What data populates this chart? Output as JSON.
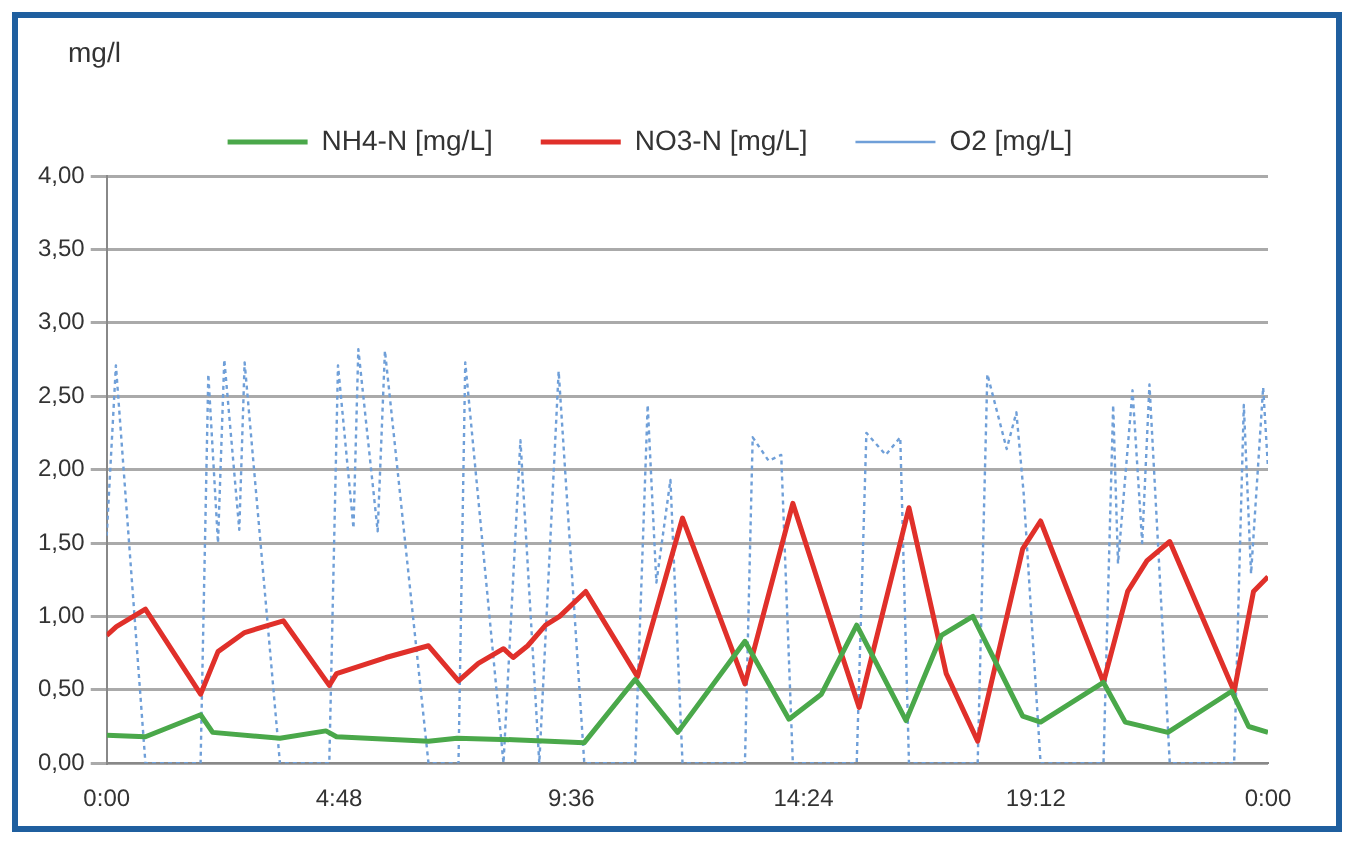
{
  "chart_data": {
    "type": "line",
    "ylabel": "mg/l",
    "xlim": [
      0,
      24
    ],
    "xticks": [
      {
        "value": 0,
        "label": "0:00"
      },
      {
        "value": 4.8,
        "label": "4:48"
      },
      {
        "value": 9.6,
        "label": "9:36"
      },
      {
        "value": 14.4,
        "label": "14:24"
      },
      {
        "value": 19.2,
        "label": "19:12"
      },
      {
        "value": 24,
        "label": "0:00"
      }
    ],
    "ylim": [
      0,
      4
    ],
    "yticks": [
      {
        "value": 0,
        "label": "0,00"
      },
      {
        "value": 0.5,
        "label": "0,50"
      },
      {
        "value": 1,
        "label": "1,00"
      },
      {
        "value": 1.5,
        "label": "1,50"
      },
      {
        "value": 2,
        "label": "2,00"
      },
      {
        "value": 2.5,
        "label": "2,50"
      },
      {
        "value": 3,
        "label": "3,00"
      },
      {
        "value": 3.5,
        "label": "3,50"
      },
      {
        "value": 4,
        "label": "4,00"
      }
    ],
    "grid": "y",
    "legend": "top",
    "marker": "none",
    "series": [
      {
        "name": "NH4-N [mg/L]",
        "type": "line",
        "color": "#4aa84a",
        "line_style": "solid",
        "x": [
          0,
          0.8,
          1.94,
          2.19,
          3.58,
          4.53,
          4.75,
          6.65,
          7.24,
          8.4,
          9.14,
          9.87,
          10.92,
          11.8,
          13.19,
          14.1,
          14.77,
          15.5,
          16.52,
          17.25,
          17.9,
          18.93,
          19.3,
          20.6,
          21.05,
          21.93,
          23.25,
          23.6,
          24
        ],
        "values": [
          0.19,
          0.18,
          0.33,
          0.21,
          0.17,
          0.22,
          0.18,
          0.15,
          0.17,
          0.16,
          0.15,
          0.14,
          0.57,
          0.21,
          0.83,
          0.3,
          0.47,
          0.94,
          0.29,
          0.87,
          1.0,
          0.32,
          0.28,
          0.55,
          0.28,
          0.21,
          0.49,
          0.25,
          0.21
        ]
      },
      {
        "name": "NO3-N [mg/L]",
        "type": "line",
        "color": "#e0302a",
        "line_style": "solid",
        "x": [
          0,
          0.2,
          0.8,
          1.94,
          2.3,
          2.85,
          3.65,
          4.6,
          4.75,
          5.77,
          6.65,
          7.27,
          7.68,
          8.2,
          8.4,
          8.7,
          9.07,
          9.36,
          9.9,
          10.97,
          11.9,
          13.19,
          14.18,
          15.1,
          15.55,
          16.58,
          17.35,
          18.0,
          18.93,
          19.3,
          20.6,
          21.1,
          21.5,
          21.97,
          23.3,
          23.7,
          24
        ],
        "values": [
          0.87,
          0.93,
          1.05,
          0.47,
          0.76,
          0.89,
          0.97,
          0.53,
          0.61,
          0.72,
          0.8,
          0.56,
          0.68,
          0.78,
          0.72,
          0.8,
          0.94,
          1.0,
          1.17,
          0.59,
          1.67,
          0.54,
          1.77,
          0.83,
          0.38,
          1.74,
          0.61,
          0.15,
          1.46,
          1.65,
          0.55,
          1.17,
          1.38,
          1.51,
          0.49,
          1.17,
          1.27
        ]
      },
      {
        "name": "O2 [mg/L]",
        "type": "line",
        "color": "#6f9fd8",
        "line_style": "dotted",
        "x": [
          0,
          0.19,
          0.8,
          1.94,
          2.1,
          2.3,
          2.43,
          2.74,
          2.85,
          3.58,
          4.6,
          4.78,
          5.1,
          5.2,
          5.6,
          5.75,
          6.65,
          7.27,
          7.41,
          8.2,
          8.55,
          8.94,
          9.34,
          9.87,
          10.92,
          11.18,
          11.36,
          11.65,
          11.9,
          13.19,
          13.35,
          13.68,
          13.94,
          14.18,
          15.5,
          15.7,
          16.1,
          16.4,
          16.58,
          18.0,
          18.2,
          18.6,
          18.8,
          18.95,
          19.3,
          20.6,
          20.8,
          20.9,
          21.2,
          21.4,
          21.55,
          21.97,
          23.3,
          23.5,
          23.65,
          23.9,
          24
        ],
        "values": [
          1.55,
          2.71,
          0,
          0,
          2.65,
          1.5,
          2.75,
          1.59,
          2.73,
          0,
          0,
          2.71,
          1.6,
          2.82,
          1.58,
          2.81,
          0,
          0,
          2.73,
          0,
          2.2,
          0,
          2.67,
          0,
          0,
          2.44,
          1.23,
          1.93,
          0,
          0,
          2.22,
          2.06,
          2.1,
          0,
          0,
          2.25,
          2.1,
          2.22,
          0,
          0,
          2.65,
          2.14,
          2.39,
          1.84,
          0,
          0,
          2.44,
          1.36,
          2.54,
          1.5,
          2.58,
          0,
          0,
          2.44,
          1.29,
          2.56,
          2.01
        ]
      }
    ]
  }
}
